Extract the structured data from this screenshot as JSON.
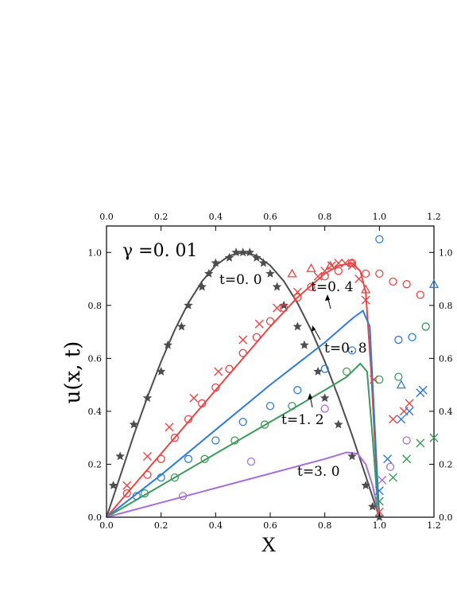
{
  "chart_data": {
    "type": "line",
    "xlabel": "X",
    "ylabel": "u(x, t)",
    "annotation_gamma": "γ =0. 01",
    "xlim": [
      0.0,
      1.2
    ],
    "ylim": [
      0.0,
      1.1
    ],
    "x_ticks": [
      "0.0",
      "0.2",
      "0.4",
      "0.6",
      "0.8",
      "1.0",
      "1.2"
    ],
    "y_ticks": [
      "0.0",
      "0.2",
      "0.4",
      "0.6",
      "0.8",
      "1.0"
    ],
    "time_labels": [
      "t=0. 0",
      "t=0. 4",
      "t=0. 8",
      "t=1. 2",
      "t=3. 0"
    ],
    "series": [
      {
        "color": "#4d4d4d",
        "line": [
          [
            0,
            0
          ],
          [
            0.05,
            0.155
          ],
          [
            0.1,
            0.31
          ],
          [
            0.15,
            0.454
          ],
          [
            0.2,
            0.588
          ],
          [
            0.25,
            0.707
          ],
          [
            0.3,
            0.809
          ],
          [
            0.35,
            0.891
          ],
          [
            0.4,
            0.951
          ],
          [
            0.45,
            0.988
          ],
          [
            0.5,
            1.0
          ],
          [
            0.55,
            0.988
          ],
          [
            0.6,
            0.951
          ],
          [
            0.65,
            0.891
          ],
          [
            0.7,
            0.809
          ],
          [
            0.75,
            0.707
          ],
          [
            0.8,
            0.588
          ],
          [
            0.85,
            0.454
          ],
          [
            0.9,
            0.31
          ],
          [
            0.95,
            0.155
          ],
          [
            1.0,
            0
          ]
        ],
        "markers_star": [
          [
            0.025,
            0.12
          ],
          [
            0.05,
            0.23
          ],
          [
            0.1,
            0.35
          ],
          [
            0.15,
            0.45
          ],
          [
            0.2,
            0.55
          ],
          [
            0.225,
            0.65
          ],
          [
            0.275,
            0.72
          ],
          [
            0.3,
            0.8
          ],
          [
            0.35,
            0.87
          ],
          [
            0.375,
            0.92
          ],
          [
            0.4,
            0.96
          ],
          [
            0.45,
            0.98
          ],
          [
            0.475,
            1.0
          ],
          [
            0.5,
            1.0
          ],
          [
            0.525,
            1.0
          ],
          [
            0.55,
            0.98
          ],
          [
            0.575,
            0.96
          ],
          [
            0.6,
            0.92
          ],
          [
            0.625,
            0.87
          ],
          [
            0.65,
            0.8
          ],
          [
            0.7,
            0.72
          ],
          [
            0.725,
            0.65
          ],
          [
            0.775,
            0.55
          ],
          [
            0.8,
            0.45
          ],
          [
            0.85,
            0.35
          ],
          [
            0.9,
            0.23
          ],
          [
            0.95,
            0.12
          ],
          [
            0.975,
            0.04
          ],
          [
            1.0,
            0.0
          ]
        ]
      },
      {
        "color": "#e84545",
        "line": [
          [
            0,
            0
          ],
          [
            0.1,
            0.12
          ],
          [
            0.2,
            0.24
          ],
          [
            0.3,
            0.36
          ],
          [
            0.4,
            0.48
          ],
          [
            0.5,
            0.6
          ],
          [
            0.6,
            0.72
          ],
          [
            0.7,
            0.83
          ],
          [
            0.8,
            0.92
          ],
          [
            0.85,
            0.95
          ],
          [
            0.9,
            0.96
          ],
          [
            0.93,
            0.93
          ],
          [
            0.95,
            0.85
          ],
          [
            0.97,
            0.55
          ],
          [
            0.985,
            0.25
          ],
          [
            1.0,
            0.0
          ]
        ],
        "markers_x": [
          [
            0.075,
            0.12
          ],
          [
            0.15,
            0.23
          ],
          [
            0.23,
            0.34
          ],
          [
            0.32,
            0.45
          ],
          [
            0.41,
            0.55
          ],
          [
            0.5,
            0.67
          ],
          [
            0.56,
            0.73
          ],
          [
            0.625,
            0.79
          ],
          [
            0.7,
            0.85
          ],
          [
            0.775,
            0.91
          ],
          [
            0.8,
            0.93
          ],
          [
            0.825,
            0.95
          ],
          [
            0.85,
            0.96
          ],
          [
            0.875,
            0.96
          ],
          [
            0.9,
            0.95
          ],
          [
            0.925,
            0.9
          ],
          [
            0.95,
            0.82
          ],
          [
            0.98,
            0.52
          ],
          [
            1.0,
            0.02
          ],
          [
            1.05,
            0.37
          ],
          [
            1.09,
            0.4
          ],
          [
            1.11,
            0.43
          ]
        ],
        "markers_circle": [
          [
            0.075,
            0.09
          ],
          [
            0.15,
            0.16
          ],
          [
            0.2,
            0.22
          ],
          [
            0.25,
            0.3
          ],
          [
            0.3,
            0.37
          ],
          [
            0.35,
            0.43
          ],
          [
            0.4,
            0.49
          ],
          [
            0.45,
            0.56
          ],
          [
            0.5,
            0.62
          ],
          [
            0.55,
            0.68
          ],
          [
            0.6,
            0.74
          ],
          [
            0.65,
            0.79
          ],
          [
            0.7,
            0.83
          ],
          [
            0.75,
            0.87
          ],
          [
            0.8,
            0.91
          ],
          [
            0.85,
            0.93
          ],
          [
            0.9,
            0.96
          ],
          [
            0.95,
            0.92
          ],
          [
            1.0,
            0.92
          ],
          [
            1.05,
            0.89
          ],
          [
            1.1,
            0.88
          ],
          [
            1.15,
            0.84
          ]
        ],
        "markers_triangle": [
          [
            0.68,
            0.92
          ],
          [
            0.75,
            0.94
          ],
          [
            0.82,
            0.95
          ],
          [
            0.9,
            0.96
          ],
          [
            0.95,
            0.86
          ]
        ]
      },
      {
        "color": "#2f7bd6",
        "line": [
          [
            0,
            0
          ],
          [
            0.2,
            0.16
          ],
          [
            0.4,
            0.33
          ],
          [
            0.6,
            0.5
          ],
          [
            0.8,
            0.66
          ],
          [
            0.9,
            0.75
          ],
          [
            0.94,
            0.78
          ],
          [
            0.965,
            0.72
          ],
          [
            0.985,
            0.3
          ],
          [
            1.0,
            0.0
          ]
        ],
        "markers_x": [
          [
            1.0,
            0.1
          ],
          [
            1.03,
            0.22
          ],
          [
            1.08,
            0.37
          ],
          [
            1.11,
            0.4
          ],
          [
            1.15,
            0.47
          ],
          [
            1.16,
            0.48
          ]
        ],
        "markers_circle": [
          [
            0.11,
            0.08
          ],
          [
            0.2,
            0.15
          ],
          [
            0.3,
            0.22
          ],
          [
            0.4,
            0.29
          ],
          [
            0.5,
            0.36
          ],
          [
            0.6,
            0.42
          ],
          [
            0.7,
            0.48
          ],
          [
            0.8,
            0.56
          ],
          [
            0.9,
            0.63
          ],
          [
            1.0,
            1.05
          ],
          [
            1.07,
            0.67
          ],
          [
            1.12,
            0.68
          ]
        ],
        "markers_triangle": [
          [
            1.08,
            0.5
          ],
          [
            1.2,
            0.88
          ]
        ]
      },
      {
        "color": "#3c9a5a",
        "line": [
          [
            0,
            0
          ],
          [
            0.2,
            0.12
          ],
          [
            0.4,
            0.24
          ],
          [
            0.6,
            0.36
          ],
          [
            0.8,
            0.48
          ],
          [
            0.88,
            0.53
          ],
          [
            0.93,
            0.58
          ],
          [
            0.955,
            0.55
          ],
          [
            0.975,
            0.3
          ],
          [
            0.99,
            0.1
          ],
          [
            1.0,
            0.0
          ]
        ],
        "markers_x": [
          [
            1.0,
            0.06
          ],
          [
            1.05,
            0.15
          ],
          [
            1.1,
            0.22
          ],
          [
            1.15,
            0.28
          ],
          [
            1.2,
            0.3
          ]
        ],
        "markers_circle": [
          [
            0.14,
            0.09
          ],
          [
            0.25,
            0.15
          ],
          [
            0.36,
            0.22
          ],
          [
            0.47,
            0.29
          ],
          [
            0.58,
            0.35
          ],
          [
            0.68,
            0.42
          ],
          [
            0.88,
            0.55
          ],
          [
            1.0,
            0.52
          ],
          [
            1.07,
            0.53
          ],
          [
            1.17,
            0.72
          ]
        ],
        "markers_triangle": []
      },
      {
        "color": "#a66fd6",
        "line": [
          [
            0,
            0
          ],
          [
            0.2,
            0.055
          ],
          [
            0.4,
            0.11
          ],
          [
            0.6,
            0.165
          ],
          [
            0.8,
            0.22
          ],
          [
            0.88,
            0.245
          ],
          [
            0.92,
            0.24
          ],
          [
            0.95,
            0.2
          ],
          [
            0.975,
            0.12
          ],
          [
            0.99,
            0.05
          ],
          [
            1.0,
            0.0
          ]
        ],
        "markers_x": [
          [
            1.01,
            0.14
          ]
        ],
        "markers_circle": [
          [
            0.28,
            0.08
          ],
          [
            0.53,
            0.21
          ],
          [
            0.8,
            0.41
          ],
          [
            1.04,
            0.19
          ],
          [
            1.1,
            0.29
          ]
        ],
        "markers_triangle": []
      }
    ]
  }
}
